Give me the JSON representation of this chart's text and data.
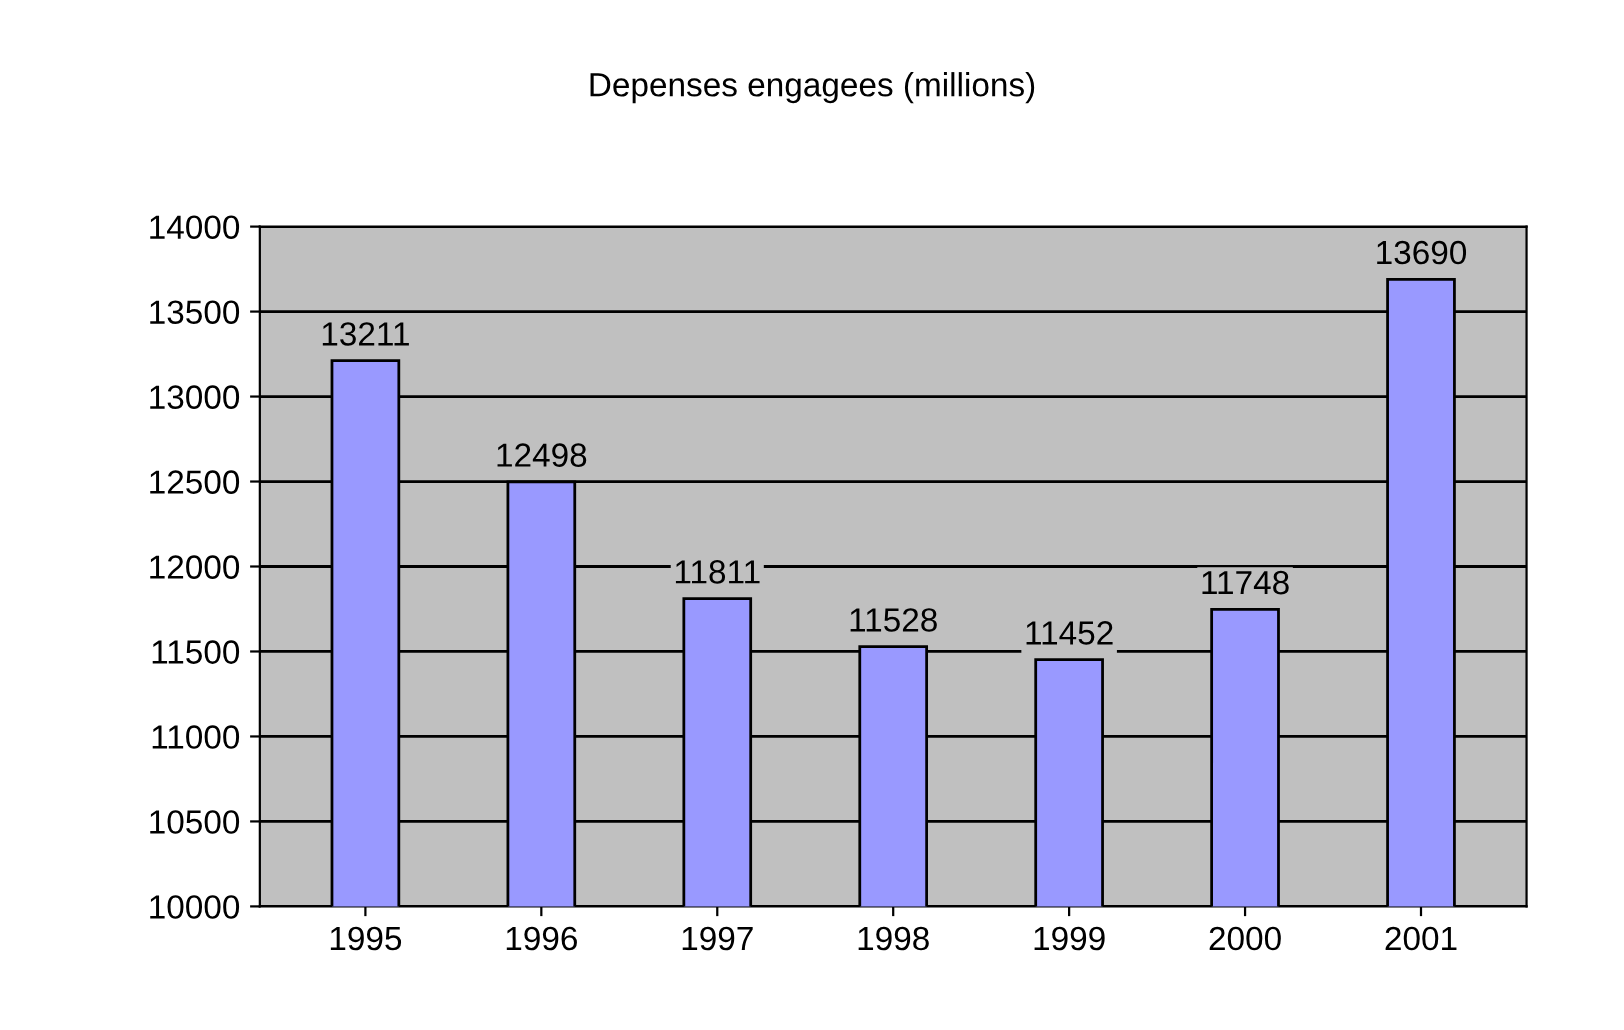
{
  "chart_data": {
    "type": "bar",
    "title": "Depenses engagees (millions)",
    "categories": [
      "1995",
      "1996",
      "1997",
      "1998",
      "1999",
      "2000",
      "2001"
    ],
    "values": [
      13211,
      12498,
      11811,
      11528,
      11452,
      11748,
      13690
    ],
    "color": "#9999ff",
    "ylim": [
      10000,
      14000
    ],
    "yticks": [
      10000,
      10500,
      11000,
      11500,
      12000,
      12500,
      13000,
      13500,
      14000
    ],
    "grid": "y",
    "data_labels": true
  }
}
